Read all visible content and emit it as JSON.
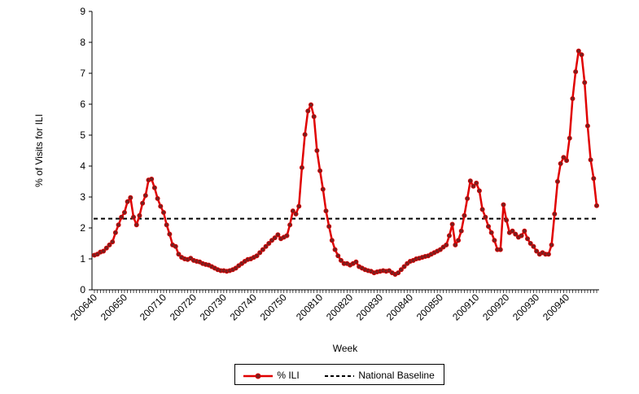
{
  "chart_data": {
    "type": "line",
    "xlabel": "Week",
    "ylabel": "% of Visits for ILI",
    "ylim": [
      0,
      9
    ],
    "yticks": [
      0,
      1,
      2,
      3,
      4,
      5,
      6,
      7,
      8,
      9
    ],
    "x_tick_labels": [
      "200640",
      "200650",
      "200710",
      "200720",
      "200730",
      "200740",
      "200750",
      "200810",
      "200820",
      "200830",
      "200840",
      "200850",
      "200910",
      "200920",
      "200930",
      "200940"
    ],
    "x_tick_label_week_index": [
      0,
      10,
      23,
      33,
      43,
      53,
      63,
      75,
      85,
      95,
      105,
      115,
      127,
      137,
      147,
      157
    ],
    "legend_position": "bottom",
    "grid": false,
    "series": [
      {
        "name": "% ILI",
        "color": "#e00000",
        "marker_color": "#7a1f1f",
        "values": [
          1.12,
          1.15,
          1.22,
          1.25,
          1.35,
          1.45,
          1.55,
          1.85,
          2.1,
          2.35,
          2.5,
          2.85,
          2.98,
          2.35,
          2.1,
          2.4,
          2.8,
          3.05,
          3.55,
          3.58,
          3.3,
          2.95,
          2.7,
          2.5,
          2.1,
          1.8,
          1.45,
          1.4,
          1.15,
          1.05,
          1.0,
          0.98,
          1.02,
          0.95,
          0.92,
          0.9,
          0.85,
          0.82,
          0.8,
          0.75,
          0.7,
          0.65,
          0.62,
          0.62,
          0.6,
          0.62,
          0.65,
          0.7,
          0.78,
          0.85,
          0.92,
          0.98,
          1.0,
          1.05,
          1.1,
          1.2,
          1.3,
          1.4,
          1.5,
          1.6,
          1.68,
          1.78,
          1.65,
          1.7,
          1.75,
          2.1,
          2.55,
          2.45,
          2.7,
          3.95,
          5.02,
          5.78,
          5.98,
          5.6,
          4.5,
          3.85,
          3.25,
          2.55,
          2.05,
          1.6,
          1.3,
          1.1,
          0.95,
          0.85,
          0.85,
          0.8,
          0.85,
          0.9,
          0.75,
          0.7,
          0.65,
          0.62,
          0.6,
          0.55,
          0.58,
          0.6,
          0.62,
          0.6,
          0.62,
          0.55,
          0.5,
          0.55,
          0.65,
          0.75,
          0.85,
          0.92,
          0.95,
          1.0,
          1.02,
          1.05,
          1.08,
          1.1,
          1.15,
          1.2,
          1.25,
          1.3,
          1.38,
          1.45,
          1.75,
          2.12,
          1.45,
          1.6,
          1.9,
          2.4,
          2.95,
          3.52,
          3.35,
          3.45,
          3.2,
          2.6,
          2.35,
          2.05,
          1.85,
          1.6,
          1.3,
          1.3,
          2.75,
          2.25,
          1.85,
          1.9,
          1.8,
          1.7,
          1.75,
          1.9,
          1.65,
          1.5,
          1.4,
          1.25,
          1.15,
          1.2,
          1.15,
          1.15,
          1.45,
          2.45,
          3.5,
          4.08,
          4.28,
          4.18,
          4.9,
          6.18,
          7.05,
          7.72,
          7.6,
          6.7,
          5.3,
          4.2,
          3.6,
          2.72
        ]
      },
      {
        "name": "National Baseline",
        "color": "#000000",
        "value": 2.3
      }
    ]
  }
}
